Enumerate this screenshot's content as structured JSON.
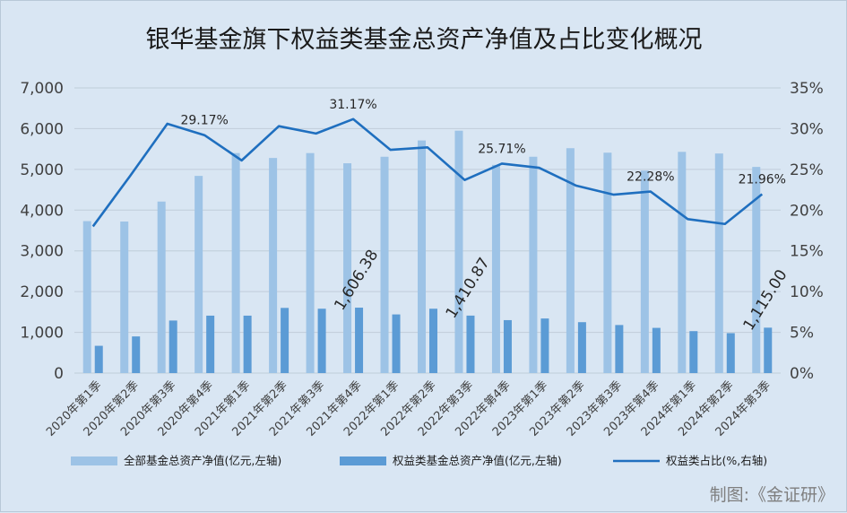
{
  "chart_data": {
    "type": "bar",
    "title": "银华基金旗下权益类基金总资产净值及占比变化概况",
    "categories": [
      "2020年第1季",
      "2020年第2季",
      "2020年第3季",
      "2020年第4季",
      "2021年第1季",
      "2021年第2季",
      "2021年第3季",
      "2021年第4季",
      "2022年第1季",
      "2022年第2季",
      "2022年第3季",
      "2022年第4季",
      "2023年第1季",
      "2023年第2季",
      "2023年第3季",
      "2023年第4季",
      "2024年第1季",
      "2024年第2季",
      "2024年第3季"
    ],
    "series": [
      {
        "name": "全部基金总资产净值(亿元,左轴)",
        "type": "bar",
        "axis": "left",
        "color": "#9dc3e6",
        "values": [
          3730,
          3720,
          4210,
          4840,
          5400,
          5280,
          5400,
          5150,
          5310,
          5710,
          5950,
          5110,
          5310,
          5520,
          5410,
          4970,
          5430,
          5390,
          5060
        ]
      },
      {
        "name": "权益类基金总资产净值(亿元,左轴)",
        "type": "bar",
        "axis": "left",
        "color": "#5b9bd5",
        "values": [
          670,
          900,
          1290,
          1410,
          1410,
          1600,
          1580,
          1606.38,
          1440,
          1580,
          1410.87,
          1300,
          1340,
          1250,
          1180,
          1110,
          1030,
          980,
          1115.0
        ]
      },
      {
        "name": "权益类占比(%,右轴)",
        "type": "line",
        "axis": "right",
        "color": "#1f6fbf",
        "values": [
          18.0,
          24.2,
          30.6,
          29.2,
          26.1,
          30.3,
          29.4,
          31.17,
          27.4,
          27.7,
          23.7,
          25.71,
          25.2,
          23.0,
          21.9,
          22.28,
          18.9,
          18.3,
          21.96
        ]
      }
    ],
    "left_axis": {
      "ylim": [
        0,
        7000
      ],
      "ticks": [
        "0",
        "1,000",
        "2,000",
        "3,000",
        "4,000",
        "5,000",
        "6,000",
        "7,000"
      ]
    },
    "right_axis": {
      "ylim": [
        0,
        35
      ],
      "ticks": [
        "0%",
        "5%",
        "10%",
        "15%",
        "20%",
        "25%",
        "30%",
        "35%"
      ]
    },
    "percent_labels": [
      {
        "index": 3,
        "text": "29.17%"
      },
      {
        "index": 7,
        "text": "31.17%"
      },
      {
        "index": 11,
        "text": "25.71%"
      },
      {
        "index": 15,
        "text": "22.28%"
      },
      {
        "index": 18,
        "text": "21.96%"
      }
    ],
    "value_labels": [
      {
        "index": 7,
        "text": "1,606.38"
      },
      {
        "index": 10,
        "text": "1,410.87"
      },
      {
        "index": 18,
        "text": "1,115.00"
      }
    ],
    "grid": true,
    "legend_position": "bottom"
  },
  "source": "制图:《金证研》"
}
